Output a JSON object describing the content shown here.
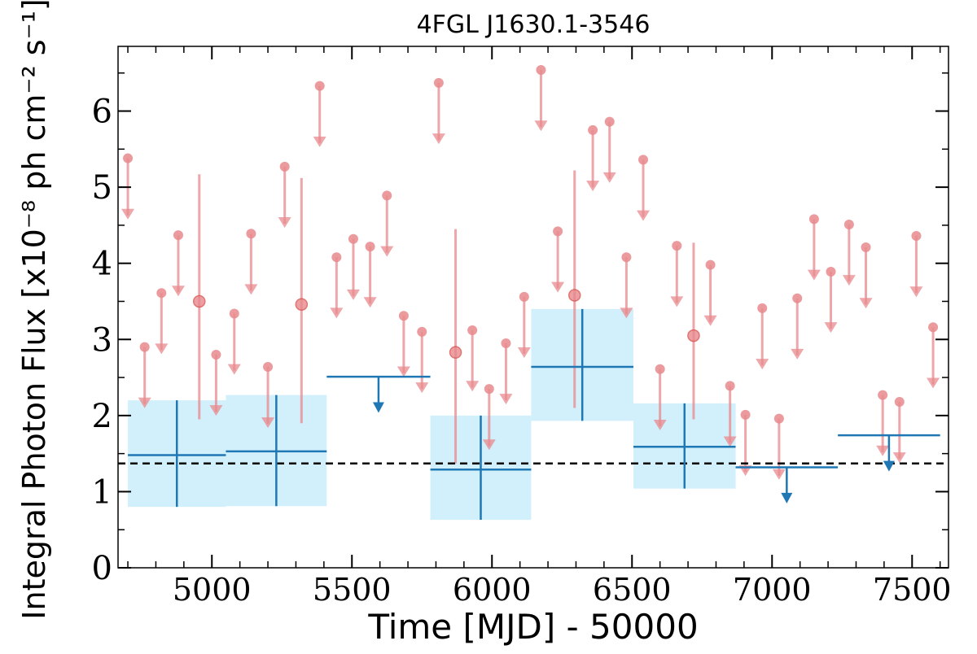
{
  "chart_data": {
    "type": "scatter",
    "title": "4FGL J1630.1-3546",
    "xlabel": "Time [MJD] - 50000",
    "ylabel": "Integral Photon Flux [x10⁻⁸ ph cm⁻² s⁻¹]",
    "xlim": [
      4665,
      7630
    ],
    "ylim": [
      0,
      6.85
    ],
    "x_ticks": [
      5000,
      5500,
      6000,
      6500,
      7000,
      7500
    ],
    "y_ticks": [
      0,
      1,
      2,
      3,
      4,
      5,
      6
    ],
    "grid": false,
    "reference_line": {
      "value": 1.37,
      "style": "dashed",
      "color": "#000000"
    },
    "colors": {
      "fine_bins": "#e8898d",
      "coarse_bins": "#1f77b4",
      "coarse_band": "#cdeefc"
    },
    "series": [
      {
        "binning": "fine",
        "upper_limits": [
          {
            "x": 4700,
            "y": 5.38
          },
          {
            "x": 4760,
            "y": 2.9
          },
          {
            "x": 4820,
            "y": 3.61
          },
          {
            "x": 4880,
            "y": 4.37
          },
          {
            "x": 5015,
            "y": 2.8
          },
          {
            "x": 5080,
            "y": 3.34
          },
          {
            "x": 5140,
            "y": 4.39
          },
          {
            "x": 5200,
            "y": 2.64
          },
          {
            "x": 5260,
            "y": 5.27
          },
          {
            "x": 5385,
            "y": 6.33
          },
          {
            "x": 5445,
            "y": 4.08
          },
          {
            "x": 5505,
            "y": 4.32
          },
          {
            "x": 5565,
            "y": 4.22
          },
          {
            "x": 5625,
            "y": 4.89
          },
          {
            "x": 5685,
            "y": 3.31
          },
          {
            "x": 5750,
            "y": 3.1
          },
          {
            "x": 5810,
            "y": 6.37
          },
          {
            "x": 5930,
            "y": 3.12
          },
          {
            "x": 5990,
            "y": 2.35
          },
          {
            "x": 6050,
            "y": 2.95
          },
          {
            "x": 6115,
            "y": 3.56
          },
          {
            "x": 6175,
            "y": 6.54
          },
          {
            "x": 6235,
            "y": 4.42
          },
          {
            "x": 6360,
            "y": 5.75
          },
          {
            "x": 6420,
            "y": 5.86
          },
          {
            "x": 6480,
            "y": 4.08
          },
          {
            "x": 6540,
            "y": 5.36
          },
          {
            "x": 6600,
            "y": 2.61
          },
          {
            "x": 6660,
            "y": 4.23
          },
          {
            "x": 6780,
            "y": 3.98
          },
          {
            "x": 6850,
            "y": 2.39
          },
          {
            "x": 6905,
            "y": 2.01
          },
          {
            "x": 6965,
            "y": 3.41
          },
          {
            "x": 7025,
            "y": 1.96
          },
          {
            "x": 7090,
            "y": 3.54
          },
          {
            "x": 7150,
            "y": 4.58
          },
          {
            "x": 7210,
            "y": 3.89
          },
          {
            "x": 7275,
            "y": 4.51
          },
          {
            "x": 7335,
            "y": 4.21
          },
          {
            "x": 7395,
            "y": 2.27
          },
          {
            "x": 7455,
            "y": 2.18
          },
          {
            "x": 7515,
            "y": 4.36
          },
          {
            "x": 7575,
            "y": 3.16
          }
        ],
        "detections": [
          {
            "x": 4955,
            "y": 3.5,
            "y_low": 1.95,
            "y_high": 5.17
          },
          {
            "x": 5320,
            "y": 3.46,
            "y_low": 1.9,
            "y_high": 5.12
          },
          {
            "x": 5870,
            "y": 2.83,
            "y_low": 1.37,
            "y_high": 4.45
          },
          {
            "x": 6295,
            "y": 3.58,
            "y_low": 2.1,
            "y_high": 5.22
          },
          {
            "x": 6720,
            "y": 3.05,
            "y_low": 1.95,
            "y_high": 4.27
          }
        ]
      },
      {
        "binning": "coarse",
        "detections": [
          {
            "x_low": 4700,
            "x_high": 5050,
            "y": 1.48,
            "y_low": 0.8,
            "y_high": 2.2
          },
          {
            "x_low": 5050,
            "x_high": 5410,
            "y": 1.53,
            "y_low": 0.81,
            "y_high": 2.27
          },
          {
            "x_low": 5780,
            "x_high": 6140,
            "y": 1.29,
            "y_low": 0.63,
            "y_high": 2.0
          },
          {
            "x_low": 6140,
            "x_high": 6505,
            "y": 2.64,
            "y_low": 1.93,
            "y_high": 3.4
          },
          {
            "x_low": 6505,
            "x_high": 6870,
            "y": 1.59,
            "y_low": 1.04,
            "y_high": 2.16
          }
        ],
        "upper_limits": [
          {
            "x_low": 5410,
            "x_high": 5780,
            "y": 2.51
          },
          {
            "x_low": 6870,
            "x_high": 7235,
            "y": 1.32
          },
          {
            "x_low": 7235,
            "x_high": 7600,
            "y": 1.74
          }
        ]
      }
    ]
  }
}
